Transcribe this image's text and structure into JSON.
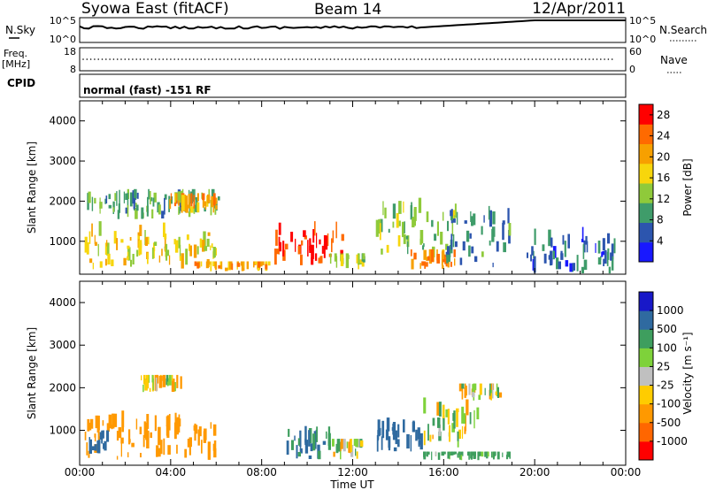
{
  "header": {
    "radar": "Syowa East (fitACF)",
    "beam": "Beam 14",
    "date": "12/Apr/2011"
  },
  "strip": {
    "nsky_label": "N.Sky",
    "nsearch_label": "N.Search",
    "noise_ticks_left": [
      "10^5",
      "10^0"
    ],
    "noise_ticks_right": [
      "10^5",
      "10^0"
    ],
    "freq_label_line1": "Freq.",
    "freq_label_line2": "[MHz]",
    "freq_ticks": [
      "18",
      "8"
    ],
    "nave_label": "Nave",
    "nave_ticks": [
      "60",
      "0"
    ],
    "cpid_label": "CPID",
    "mode_text": "normal (fast) -151 RF"
  },
  "colors": {
    "power_scale": [
      "#1818ff",
      "#2c55ae",
      "#3f9c6a",
      "#8fca3a",
      "#f7d60c",
      "#f7a000",
      "#ff6a00",
      "#ff0000"
    ],
    "velocity_scale": [
      "#ff0000",
      "#ff6600",
      "#ff9900",
      "#ffcc00",
      "#c0c0c0",
      "#7ed23a",
      "#3e9e5e",
      "#2f6aa0",
      "#1818c8"
    ]
  },
  "chart_data": [
    {
      "type": "heatmap",
      "quantity": "power",
      "ylabel": "Slant Range [km]",
      "xlabel": "",
      "yticks": [
        "1000",
        "2000",
        "3000",
        "4000"
      ],
      "xticks": [
        "00:00",
        "04:00",
        "08:00",
        "12:00",
        "16:00",
        "20:00",
        "00:00"
      ],
      "xlim_hours": [
        0,
        24
      ],
      "ylim_km": [
        180,
        4500
      ],
      "colorbar": {
        "label": "Power [dB]",
        "ticks": [
          "4",
          "8",
          "12",
          "16",
          "20",
          "24",
          "28"
        ],
        "range": [
          0,
          30
        ]
      },
      "regions": [
        {
          "t0": 0.2,
          "t1": 6.0,
          "r0": 300,
          "r1": 1500,
          "value": 17
        },
        {
          "t0": 0.3,
          "t1": 6.2,
          "r0": 1550,
          "r1": 2300,
          "value": 10
        },
        {
          "t0": 3.8,
          "t1": 6.0,
          "r0": 1700,
          "r1": 2200,
          "value": 20
        },
        {
          "t0": 5.0,
          "t1": 8.3,
          "r0": 250,
          "r1": 500,
          "value": 20
        },
        {
          "t0": 8.5,
          "t1": 11.5,
          "r0": 400,
          "r1": 1500,
          "value": 27
        },
        {
          "t0": 11.0,
          "t1": 12.5,
          "r0": 300,
          "r1": 700,
          "value": 14
        },
        {
          "t0": 13.0,
          "t1": 16.5,
          "r0": 600,
          "r1": 2200,
          "value": 12
        },
        {
          "t0": 14.5,
          "t1": 16.5,
          "r0": 300,
          "r1": 800,
          "value": 22
        },
        {
          "t0": 16.0,
          "t1": 19.0,
          "r0": 300,
          "r1": 2200,
          "value": 8
        },
        {
          "t0": 19.5,
          "t1": 23.5,
          "r0": 200,
          "r1": 1400,
          "value": 6
        }
      ]
    },
    {
      "type": "heatmap",
      "quantity": "velocity",
      "ylabel": "Slant Range [km]",
      "xlabel": "Time UT",
      "yticks": [
        "1000",
        "2000",
        "3000",
        "4000"
      ],
      "xticks": [
        "00:00",
        "04:00",
        "08:00",
        "12:00",
        "16:00",
        "20:00",
        "00:00"
      ],
      "xlim_hours": [
        0,
        24
      ],
      "ylim_km": [
        180,
        4500
      ],
      "colorbar": {
        "label": "Velocity [m s⁻¹]",
        "ticks": [
          "1000",
          "500",
          "100",
          "25",
          "-25",
          "-100",
          "-500",
          "-1000"
        ]
      },
      "regions": [
        {
          "t0": 0.2,
          "t1": 6.0,
          "r0": 300,
          "r1": 1500,
          "value": -300
        },
        {
          "t0": 2.5,
          "t1": 4.5,
          "r0": 1900,
          "r1": 2300,
          "value": 0
        },
        {
          "t0": 0.2,
          "t1": 1.2,
          "r0": 400,
          "r1": 1000,
          "value": 700
        },
        {
          "t0": 9.0,
          "t1": 11.0,
          "r0": 300,
          "r1": 1100,
          "value": 600
        },
        {
          "t0": 11.0,
          "t1": 12.5,
          "r0": 300,
          "r1": 800,
          "value": 0
        },
        {
          "t0": 13.0,
          "t1": 15.0,
          "r0": 500,
          "r1": 1300,
          "value": 700
        },
        {
          "t0": 15.0,
          "t1": 17.5,
          "r0": 600,
          "r1": 1800,
          "value": 0
        },
        {
          "t0": 15.0,
          "t1": 19.0,
          "r0": 300,
          "r1": 500,
          "value": 200
        },
        {
          "t0": 16.5,
          "t1": 18.5,
          "r0": 1700,
          "r1": 2100,
          "value": -50
        }
      ]
    }
  ]
}
